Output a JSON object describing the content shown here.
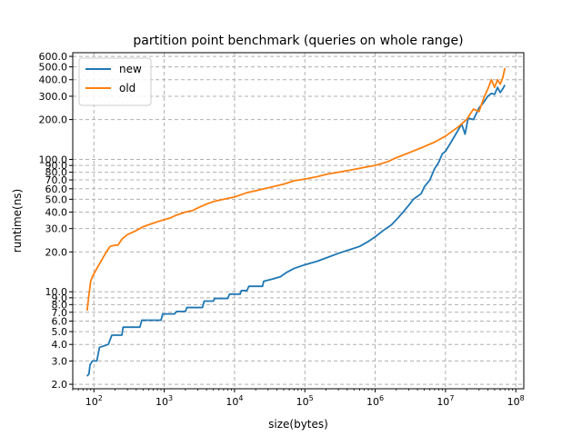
{
  "chart_data": {
    "type": "line",
    "title": "partition point benchmark (queries on whole range)",
    "xlabel": "size(bytes)",
    "ylabel": "runtime(ns)",
    "x_scale": "log",
    "y_scale": "log",
    "xlim": [
      50,
      130000000
    ],
    "ylim": [
      1.85,
      640
    ],
    "grid": true,
    "legend_position": "top-left",
    "x_ticks": [
      {
        "value": 100,
        "base": "10",
        "exp": "2"
      },
      {
        "value": 1000,
        "base": "10",
        "exp": "3"
      },
      {
        "value": 10000,
        "base": "10",
        "exp": "4"
      },
      {
        "value": 100000,
        "base": "10",
        "exp": "5"
      },
      {
        "value": 1000000,
        "base": "10",
        "exp": "6"
      },
      {
        "value": 10000000,
        "base": "10",
        "exp": "7"
      },
      {
        "value": 100000000,
        "base": "10",
        "exp": "8"
      }
    ],
    "y_ticks": [
      {
        "value": 2,
        "label": "2.0"
      },
      {
        "value": 3,
        "label": "3.0"
      },
      {
        "value": 4,
        "label": "4.0"
      },
      {
        "value": 5,
        "label": "5.0"
      },
      {
        "value": 6,
        "label": "6.0"
      },
      {
        "value": 7,
        "label": "7.0"
      },
      {
        "value": 8,
        "label": "8.0"
      },
      {
        "value": 9,
        "label": "9.0"
      },
      {
        "value": 10,
        "label": "10.0"
      },
      {
        "value": 20,
        "label": "20.0"
      },
      {
        "value": 30,
        "label": "30.0"
      },
      {
        "value": 40,
        "label": "40.0"
      },
      {
        "value": 50,
        "label": "50.0"
      },
      {
        "value": 60,
        "label": "60.0"
      },
      {
        "value": 70,
        "label": "70.0"
      },
      {
        "value": 80,
        "label": "80.0"
      },
      {
        "value": 90,
        "label": "90.0"
      },
      {
        "value": 100,
        "label": "100.0"
      },
      {
        "value": 200,
        "label": "200.0"
      },
      {
        "value": 300,
        "label": "300.0"
      },
      {
        "value": 400,
        "label": "400.0"
      },
      {
        "value": 500,
        "label": "500.0"
      },
      {
        "value": 600,
        "label": "600.0"
      }
    ],
    "series": [
      {
        "name": "new",
        "color": "#1f77b4",
        "points": [
          [
            80,
            2.3
          ],
          [
            85,
            2.4
          ],
          [
            88,
            2.8
          ],
          [
            95,
            3.0
          ],
          [
            110,
            3.0
          ],
          [
            120,
            3.8
          ],
          [
            160,
            4.0
          ],
          [
            180,
            4.7
          ],
          [
            250,
            4.7
          ],
          [
            260,
            5.4
          ],
          [
            450,
            5.4
          ],
          [
            480,
            6.1
          ],
          [
            900,
            6.1
          ],
          [
            950,
            6.8
          ],
          [
            1400,
            6.8
          ],
          [
            1500,
            7.1
          ],
          [
            2000,
            7.1
          ],
          [
            2100,
            7.6
          ],
          [
            3500,
            7.6
          ],
          [
            3700,
            8.5
          ],
          [
            5000,
            8.5
          ],
          [
            5200,
            8.9
          ],
          [
            8000,
            8.9
          ],
          [
            8500,
            9.6
          ],
          [
            12000,
            9.6
          ],
          [
            12500,
            10.2
          ],
          [
            15000,
            10.2
          ],
          [
            16000,
            11.0
          ],
          [
            25000,
            11.0
          ],
          [
            26000,
            12.0
          ],
          [
            35000,
            12.5
          ],
          [
            45000,
            13.0
          ],
          [
            55000,
            14.0
          ],
          [
            70000,
            15.0
          ],
          [
            100000,
            16.0
          ],
          [
            150000,
            17.0
          ],
          [
            200000,
            18.0
          ],
          [
            300000,
            19.5
          ],
          [
            400000,
            20.5
          ],
          [
            600000,
            22.0
          ],
          [
            800000,
            24.0
          ],
          [
            1000000,
            26.0
          ],
          [
            1300000,
            29.0
          ],
          [
            1700000,
            32.0
          ],
          [
            2000000,
            35.0
          ],
          [
            2500000,
            40.0
          ],
          [
            3000000,
            45.0
          ],
          [
            3500000,
            50.0
          ],
          [
            4500000,
            55.0
          ],
          [
            5000000,
            62.0
          ],
          [
            6000000,
            70.0
          ],
          [
            7000000,
            85.0
          ],
          [
            8000000,
            95.0
          ],
          [
            9000000,
            110.0
          ],
          [
            10000000,
            115.0
          ],
          [
            12000000,
            135.0
          ],
          [
            14000000,
            155.0
          ],
          [
            17000000,
            185.0
          ],
          [
            19000000,
            155.0
          ],
          [
            21000000,
            205.0
          ],
          [
            25000000,
            200.0
          ],
          [
            30000000,
            245.0
          ],
          [
            35000000,
            270.0
          ],
          [
            40000000,
            300.0
          ],
          [
            45000000,
            315.0
          ],
          [
            50000000,
            310.0
          ],
          [
            55000000,
            350.0
          ],
          [
            60000000,
            320.0
          ],
          [
            65000000,
            340.0
          ],
          [
            70000000,
            365.0
          ]
        ]
      },
      {
        "name": "old",
        "color": "#ff7f0e",
        "points": [
          [
            80,
            7.2
          ],
          [
            85,
            9.5
          ],
          [
            90,
            12.0
          ],
          [
            95,
            13.0
          ],
          [
            110,
            15.0
          ],
          [
            130,
            17.5
          ],
          [
            150,
            20.0
          ],
          [
            170,
            22.0
          ],
          [
            200,
            22.5
          ],
          [
            220,
            22.5
          ],
          [
            250,
            25.0
          ],
          [
            300,
            27.0
          ],
          [
            400,
            29.0
          ],
          [
            500,
            31.0
          ],
          [
            700,
            33.0
          ],
          [
            900,
            34.5
          ],
          [
            1200,
            36.0
          ],
          [
            1500,
            38.0
          ],
          [
            2000,
            40.0
          ],
          [
            2500,
            41.0
          ],
          [
            3000,
            43.0
          ],
          [
            4000,
            46.0
          ],
          [
            5000,
            48.0
          ],
          [
            7000,
            50.0
          ],
          [
            10000,
            52.0
          ],
          [
            15000,
            56.0
          ],
          [
            20000,
            58.0
          ],
          [
            30000,
            61.0
          ],
          [
            50000,
            65.0
          ],
          [
            70000,
            69.0
          ],
          [
            100000,
            71.0
          ],
          [
            150000,
            74.0
          ],
          [
            200000,
            77.0
          ],
          [
            300000,
            80.0
          ],
          [
            500000,
            84.0
          ],
          [
            700000,
            87.0
          ],
          [
            1000000,
            90.0
          ],
          [
            1500000,
            96.0
          ],
          [
            2000000,
            103.0
          ],
          [
            3000000,
            112.0
          ],
          [
            5000000,
            125.0
          ],
          [
            7000000,
            135.0
          ],
          [
            10000000,
            150.0
          ],
          [
            15000000,
            175.0
          ],
          [
            20000000,
            200.0
          ],
          [
            25000000,
            240.0
          ],
          [
            30000000,
            230.0
          ],
          [
            35000000,
            290.0
          ],
          [
            40000000,
            340.0
          ],
          [
            45000000,
            400.0
          ],
          [
            50000000,
            350.0
          ],
          [
            55000000,
            400.0
          ],
          [
            60000000,
            370.0
          ],
          [
            65000000,
            410.0
          ],
          [
            70000000,
            490.0
          ]
        ]
      }
    ]
  }
}
